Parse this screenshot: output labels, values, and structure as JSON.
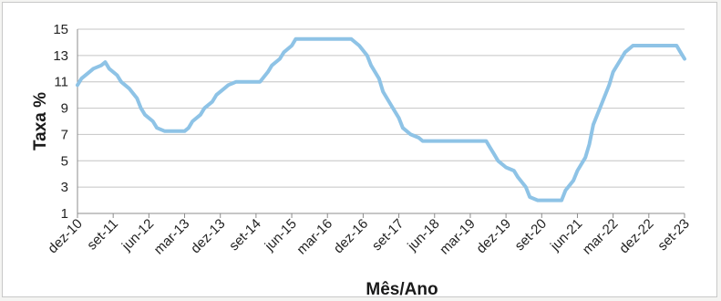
{
  "chart_data": {
    "type": "line",
    "title": "",
    "xlabel": "Mês/Ano",
    "ylabel": "Taxa %",
    "ylim": [
      1,
      15
    ],
    "yticks": [
      1,
      3,
      5,
      7,
      9,
      11,
      13,
      15
    ],
    "grid": true,
    "legend": "none",
    "line_color": "#8ec3e6",
    "x_tick_labels": [
      "dez-10",
      "set-11",
      "jun-12",
      "mar-13",
      "dez-13",
      "set-14",
      "jun-15",
      "mar-16",
      "dez-16",
      "set-17",
      "jun-18",
      "mar-19",
      "dez-19",
      "set-20",
      "jun-21",
      "mar-22",
      "dez-22",
      "set-23"
    ],
    "x_start": "2010-12",
    "x_end": "2023-09",
    "series": [
      {
        "points": [
          [
            "2010-12",
            10.75
          ],
          [
            "2011-01",
            11.25
          ],
          [
            "2011-03",
            11.75
          ],
          [
            "2011-04",
            12.0
          ],
          [
            "2011-06",
            12.25
          ],
          [
            "2011-07",
            12.5
          ],
          [
            "2011-08",
            12.0
          ],
          [
            "2011-10",
            11.5
          ],
          [
            "2011-11",
            11.0
          ],
          [
            "2012-01",
            10.5
          ],
          [
            "2012-03",
            9.75
          ],
          [
            "2012-04",
            9.0
          ],
          [
            "2012-05",
            8.5
          ],
          [
            "2012-07",
            8.0
          ],
          [
            "2012-08",
            7.5
          ],
          [
            "2012-10",
            7.25
          ],
          [
            "2013-03",
            7.25
          ],
          [
            "2013-04",
            7.5
          ],
          [
            "2013-05",
            8.0
          ],
          [
            "2013-07",
            8.5
          ],
          [
            "2013-08",
            9.0
          ],
          [
            "2013-10",
            9.5
          ],
          [
            "2013-11",
            10.0
          ],
          [
            "2014-01",
            10.5
          ],
          [
            "2014-02",
            10.75
          ],
          [
            "2014-04",
            11.0
          ],
          [
            "2014-05",
            11.0
          ],
          [
            "2014-10",
            11.0
          ],
          [
            "2014-12",
            11.75
          ],
          [
            "2015-01",
            12.25
          ],
          [
            "2015-03",
            12.75
          ],
          [
            "2015-04",
            13.25
          ],
          [
            "2015-06",
            13.75
          ],
          [
            "2015-07",
            14.25
          ],
          [
            "2015-08",
            14.25
          ],
          [
            "2016-09",
            14.25
          ],
          [
            "2016-10",
            14.0
          ],
          [
            "2016-11",
            13.75
          ],
          [
            "2017-01",
            13.0
          ],
          [
            "2017-02",
            12.25
          ],
          [
            "2017-04",
            11.25
          ],
          [
            "2017-05",
            10.25
          ],
          [
            "2017-07",
            9.25
          ],
          [
            "2017-09",
            8.25
          ],
          [
            "2017-10",
            7.5
          ],
          [
            "2017-12",
            7.0
          ],
          [
            "2018-02",
            6.75
          ],
          [
            "2018-03",
            6.5
          ],
          [
            "2019-07",
            6.5
          ],
          [
            "2019-08",
            6.0
          ],
          [
            "2019-09",
            5.5
          ],
          [
            "2019-10",
            5.0
          ],
          [
            "2019-12",
            4.5
          ],
          [
            "2020-02",
            4.25
          ],
          [
            "2020-03",
            3.75
          ],
          [
            "2020-05",
            3.0
          ],
          [
            "2020-06",
            2.25
          ],
          [
            "2020-08",
            2.0
          ],
          [
            "2021-02",
            2.0
          ],
          [
            "2021-03",
            2.75
          ],
          [
            "2021-05",
            3.5
          ],
          [
            "2021-06",
            4.25
          ],
          [
            "2021-08",
            5.25
          ],
          [
            "2021-09",
            6.25
          ],
          [
            "2021-10",
            7.75
          ],
          [
            "2021-12",
            9.25
          ],
          [
            "2022-02",
            10.75
          ],
          [
            "2022-03",
            11.75
          ],
          [
            "2022-05",
            12.75
          ],
          [
            "2022-06",
            13.25
          ],
          [
            "2022-08",
            13.75
          ],
          [
            "2023-07",
            13.75
          ],
          [
            "2023-08",
            13.25
          ],
          [
            "2023-09",
            12.75
          ]
        ]
      }
    ]
  }
}
